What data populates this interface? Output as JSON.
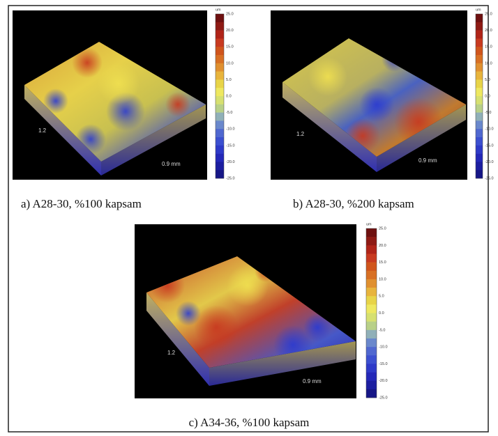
{
  "panels": [
    {
      "caption": "a) A28-30, %100 kapsam",
      "unit": "um",
      "colorbar_labels": [
        "25.0",
        "20.0",
        "15.0",
        "10.0",
        "5.0",
        "0.0",
        "-5.0",
        "-10.0",
        "-15.0",
        "-20.0",
        "-25.0"
      ],
      "depth_label": "1.2",
      "width_label": "0.9 mm"
    },
    {
      "caption": "b) A28-30, %200 kapsam",
      "unit": "um",
      "colorbar_labels": [
        "25.0",
        "20.0",
        "15.0",
        "10.0",
        "5.0",
        "0.0",
        "-5.0",
        "-10.0",
        "-15.0",
        "-20.0",
        "-25.0"
      ],
      "depth_label": "1.2",
      "width_label": "0.9 mm"
    },
    {
      "caption": "c) A34-36, %100 kapsam",
      "unit": "um",
      "colorbar_labels": [
        "25.0",
        "20.0",
        "15.0",
        "10.0",
        "5.0",
        "0.0",
        "-5.0",
        "-10.0",
        "-15.0",
        "-20.0",
        "-25.0"
      ],
      "depth_label": "1.2",
      "width_label": "0.9 mm"
    }
  ]
}
